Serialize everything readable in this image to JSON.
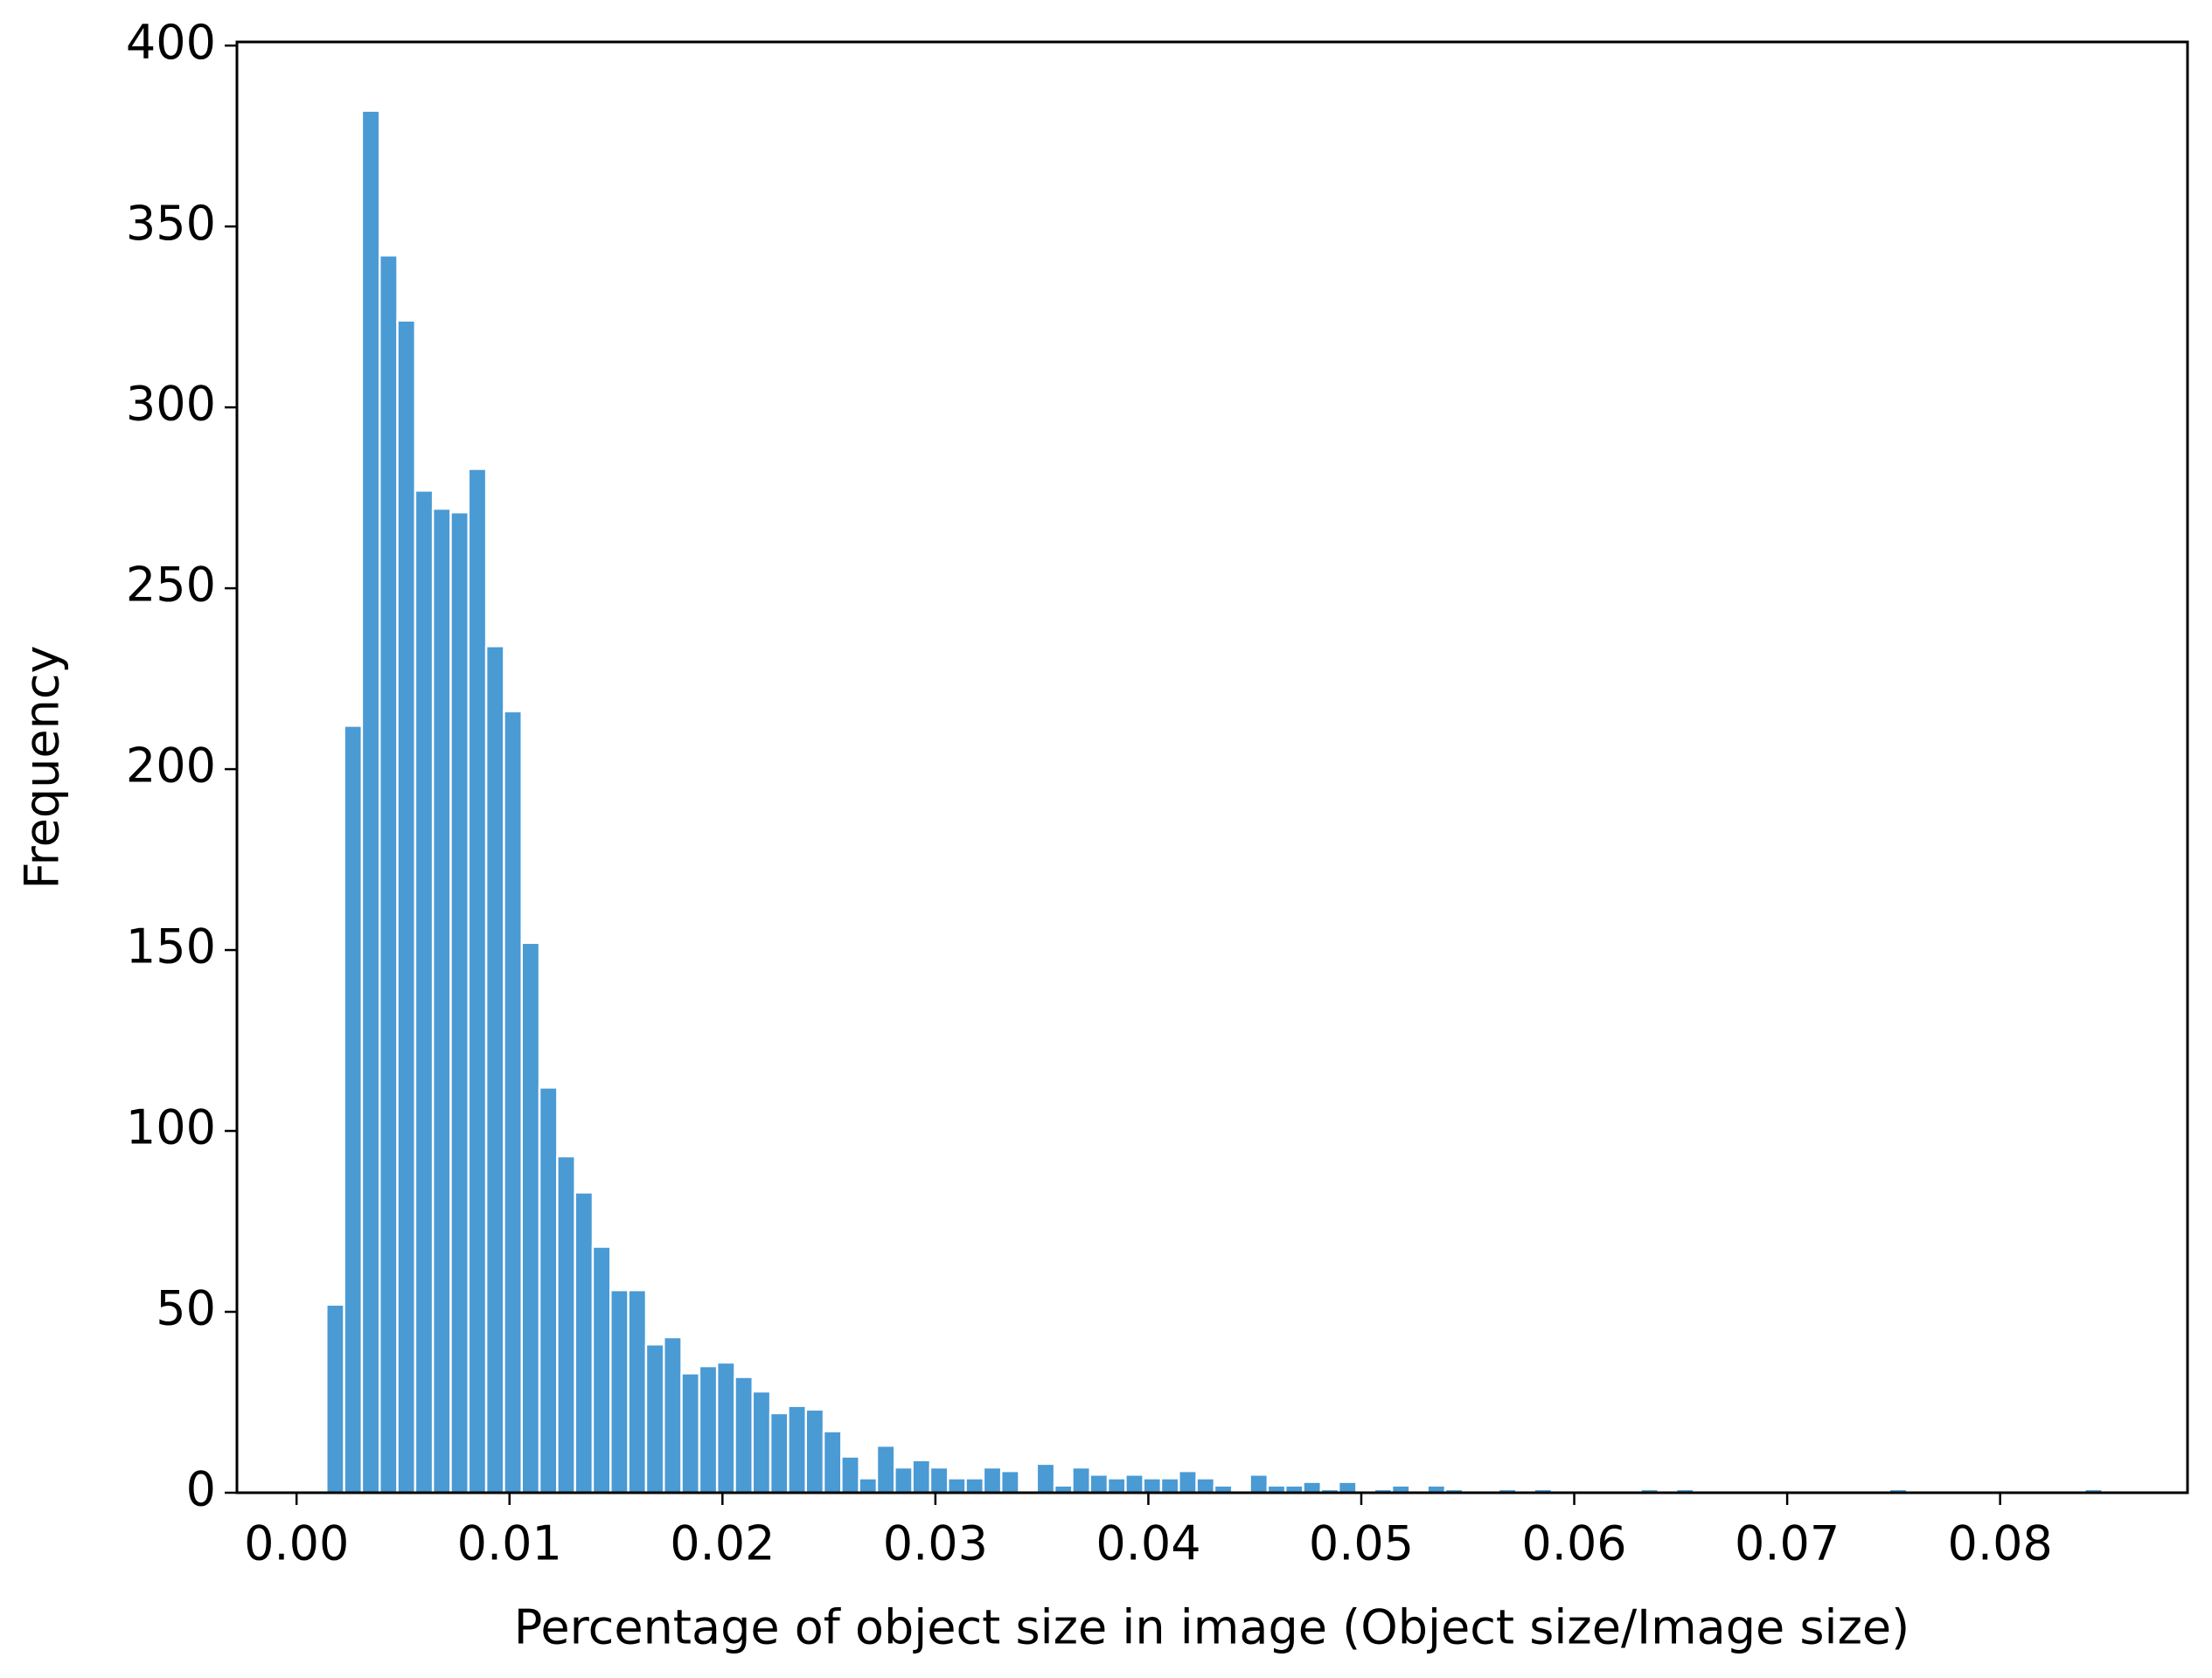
{
  "chart_data": {
    "type": "histogram",
    "xlabel": "Percentage of object size in image (Object size/Image size)",
    "ylabel": "Frequency",
    "color": "#4a9ad4",
    "bins": [
      0.0014,
      0.002234,
      0.003068,
      0.003902,
      0.004736,
      0.00557,
      0.006404,
      0.007238,
      0.008072,
      0.008906,
      0.00974,
      0.010574,
      0.011408,
      0.012242,
      0.013076,
      0.01391,
      0.014744,
      0.015578,
      0.016412,
      0.017246,
      0.01808,
      0.018914,
      0.019748,
      0.020582,
      0.021416,
      0.02225,
      0.023084,
      0.023918,
      0.024752,
      0.025586,
      0.02642,
      0.027254,
      0.028088,
      0.028922,
      0.029756,
      0.03059,
      0.031424,
      0.032258,
      0.033092,
      0.033926,
      0.03476,
      0.035594,
      0.036428,
      0.037262,
      0.038096,
      0.03893,
      0.039764,
      0.040598,
      0.041432,
      0.042266,
      0.0431,
      0.043934,
      0.044768,
      0.045602,
      0.046436,
      0.04727,
      0.048104,
      0.048938,
      0.049772,
      0.050606,
      0.05144,
      0.052274,
      0.053108,
      0.053942,
      0.054776,
      0.05561,
      0.056444,
      0.057278,
      0.058112,
      0.058946,
      0.05978,
      0.060614,
      0.061448,
      0.062282,
      0.063116,
      0.06395,
      0.064784,
      0.065618,
      0.066452,
      0.067286,
      0.06812,
      0.068954,
      0.069788,
      0.070622,
      0.071456,
      0.07229,
      0.073124,
      0.073958,
      0.074792,
      0.075626,
      0.07646,
      0.077294,
      0.078128,
      0.078962,
      0.079796,
      0.08063,
      0.081464,
      0.082298,
      0.083132,
      0.083966,
      0.0848
    ],
    "values": [
      52,
      212,
      382,
      342,
      324,
      277,
      272,
      271,
      283,
      234,
      216,
      152,
      112,
      93,
      83,
      68,
      56,
      56,
      41,
      43,
      33,
      35,
      36,
      32,
      28,
      22,
      24,
      23,
      17,
      10,
      4,
      13,
      7,
      9,
      7,
      4,
      4,
      7,
      6,
      0,
      8,
      2,
      7,
      5,
      4,
      5,
      4,
      4,
      6,
      4,
      2,
      0,
      5,
      2,
      2,
      3,
      1,
      3,
      0,
      1,
      2,
      0,
      2,
      1,
      0,
      0,
      1,
      0,
      1,
      0,
      0,
      0,
      0,
      0,
      1,
      0,
      1,
      0,
      0,
      0,
      0,
      0,
      0,
      0,
      0,
      0,
      0,
      0,
      1,
      0,
      0,
      0,
      0,
      0,
      0,
      0,
      0,
      0,
      0,
      1
    ],
    "xlim": [
      -0.0028,
      0.0888
    ],
    "ylim": [
      0,
      401
    ],
    "xticks": [
      {
        "value": 0,
        "label": "0.00"
      },
      0.01,
      0.02,
      0.03,
      0.04,
      0.05,
      0.06,
      0.07,
      0.08
    ],
    "yticks": [
      0,
      50,
      100,
      150,
      200,
      250,
      300,
      350,
      400
    ]
  }
}
